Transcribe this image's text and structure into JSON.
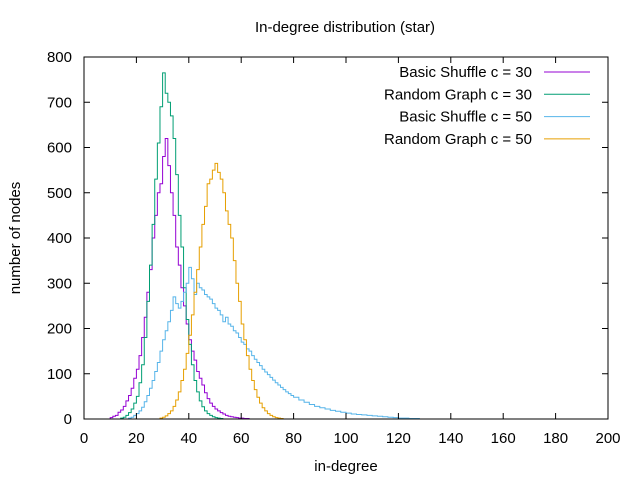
{
  "chart_data": {
    "type": "line",
    "step": true,
    "title": "In-degree distribution (star)",
    "xlabel": "in-degree",
    "ylabel": "number of nodes",
    "xlim": [
      0,
      200
    ],
    "ylim": [
      0,
      800
    ],
    "xticks": [
      0,
      20,
      40,
      60,
      80,
      100,
      120,
      140,
      160,
      180,
      200
    ],
    "yticks": [
      0,
      100,
      200,
      300,
      400,
      500,
      600,
      700,
      800
    ],
    "grid": false,
    "legend_position": "top-right",
    "series": [
      {
        "name": "Basic Shuffle c = 30",
        "color": "#9400d3",
        "points": [
          [
            9,
            0
          ],
          [
            10,
            3
          ],
          [
            11,
            6
          ],
          [
            12,
            8
          ],
          [
            13,
            15
          ],
          [
            14,
            20
          ],
          [
            15,
            28
          ],
          [
            16,
            40
          ],
          [
            17,
            52
          ],
          [
            18,
            68
          ],
          [
            19,
            90
          ],
          [
            20,
            110
          ],
          [
            21,
            140
          ],
          [
            22,
            180
          ],
          [
            23,
            225
          ],
          [
            24,
            280
          ],
          [
            25,
            330
          ],
          [
            26,
            400
          ],
          [
            27,
            450
          ],
          [
            28,
            500
          ],
          [
            29,
            520
          ],
          [
            30,
            580
          ],
          [
            31,
            620
          ],
          [
            32,
            560
          ],
          [
            33,
            500
          ],
          [
            34,
            450
          ],
          [
            35,
            380
          ],
          [
            36,
            340
          ],
          [
            37,
            290
          ],
          [
            38,
            250
          ],
          [
            39,
            210
          ],
          [
            40,
            175
          ],
          [
            41,
            150
          ],
          [
            42,
            130
          ],
          [
            43,
            105
          ],
          [
            44,
            90
          ],
          [
            45,
            75
          ],
          [
            46,
            58
          ],
          [
            47,
            45
          ],
          [
            48,
            35
          ],
          [
            49,
            28
          ],
          [
            50,
            22
          ],
          [
            51,
            18
          ],
          [
            52,
            14
          ],
          [
            53,
            11
          ],
          [
            54,
            8
          ],
          [
            55,
            6
          ],
          [
            56,
            5
          ],
          [
            57,
            4
          ],
          [
            58,
            3
          ],
          [
            59,
            2
          ],
          [
            60,
            2
          ],
          [
            61,
            1
          ],
          [
            62,
            1
          ],
          [
            63,
            0
          ]
        ]
      },
      {
        "name": "Random Graph c = 30",
        "color": "#009e73",
        "points": [
          [
            13,
            0
          ],
          [
            14,
            2
          ],
          [
            15,
            4
          ],
          [
            16,
            8
          ],
          [
            17,
            14
          ],
          [
            18,
            22
          ],
          [
            19,
            35
          ],
          [
            20,
            50
          ],
          [
            21,
            80
          ],
          [
            22,
            120
          ],
          [
            23,
            180
          ],
          [
            24,
            260
          ],
          [
            25,
            340
          ],
          [
            26,
            430
          ],
          [
            27,
            530
          ],
          [
            28,
            610
          ],
          [
            29,
            690
          ],
          [
            30,
            765
          ],
          [
            31,
            720
          ],
          [
            32,
            700
          ],
          [
            33,
            670
          ],
          [
            34,
            620
          ],
          [
            35,
            540
          ],
          [
            36,
            450
          ],
          [
            37,
            380
          ],
          [
            38,
            290
          ],
          [
            39,
            220
          ],
          [
            40,
            165
          ],
          [
            41,
            120
          ],
          [
            42,
            85
          ],
          [
            43,
            60
          ],
          [
            44,
            40
          ],
          [
            45,
            27
          ],
          [
            46,
            18
          ],
          [
            47,
            12
          ],
          [
            48,
            8
          ],
          [
            49,
            5
          ],
          [
            50,
            3
          ],
          [
            51,
            2
          ],
          [
            52,
            1
          ],
          [
            53,
            0
          ]
        ]
      },
      {
        "name": "Basic Shuffle c = 50",
        "color": "#56b4e9",
        "points": [
          [
            16,
            0
          ],
          [
            17,
            2
          ],
          [
            18,
            4
          ],
          [
            19,
            8
          ],
          [
            20,
            12
          ],
          [
            21,
            18
          ],
          [
            22,
            26
          ],
          [
            23,
            38
          ],
          [
            24,
            52
          ],
          [
            25,
            68
          ],
          [
            26,
            85
          ],
          [
            27,
            105
          ],
          [
            28,
            125
          ],
          [
            29,
            150
          ],
          [
            30,
            175
          ],
          [
            31,
            195
          ],
          [
            32,
            215
          ],
          [
            33,
            240
          ],
          [
            34,
            270
          ],
          [
            35,
            255
          ],
          [
            36,
            245
          ],
          [
            37,
            260
          ],
          [
            38,
            280
          ],
          [
            39,
            300
          ],
          [
            40,
            335
          ],
          [
            41,
            310
          ],
          [
            42,
            275
          ],
          [
            43,
            300
          ],
          [
            44,
            290
          ],
          [
            45,
            285
          ],
          [
            46,
            275
          ],
          [
            47,
            270
          ],
          [
            48,
            265
          ],
          [
            49,
            255
          ],
          [
            50,
            245
          ],
          [
            51,
            240
          ],
          [
            52,
            230
          ],
          [
            53,
            215
          ],
          [
            54,
            225
          ],
          [
            55,
            210
          ],
          [
            56,
            205
          ],
          [
            57,
            195
          ],
          [
            58,
            190
          ],
          [
            59,
            180
          ],
          [
            60,
            170
          ],
          [
            61,
            165
          ],
          [
            62,
            155
          ],
          [
            63,
            150
          ],
          [
            64,
            140
          ],
          [
            65,
            132
          ],
          [
            66,
            125
          ],
          [
            67,
            118
          ],
          [
            68,
            110
          ],
          [
            69,
            104
          ],
          [
            70,
            98
          ],
          [
            71,
            92
          ],
          [
            72,
            86
          ],
          [
            73,
            80
          ],
          [
            74,
            75
          ],
          [
            75,
            70
          ],
          [
            76,
            65
          ],
          [
            77,
            60
          ],
          [
            78,
            56
          ],
          [
            79,
            52
          ],
          [
            80,
            48
          ],
          [
            82,
            42
          ],
          [
            84,
            37
          ],
          [
            86,
            32
          ],
          [
            88,
            28
          ],
          [
            90,
            25
          ],
          [
            92,
            22
          ],
          [
            94,
            19
          ],
          [
            96,
            17
          ],
          [
            98,
            15
          ],
          [
            100,
            13
          ],
          [
            102,
            11
          ],
          [
            104,
            10
          ],
          [
            106,
            9
          ],
          [
            108,
            8
          ],
          [
            110,
            7
          ],
          [
            112,
            6
          ],
          [
            114,
            5
          ],
          [
            116,
            4
          ],
          [
            118,
            3
          ],
          [
            120,
            2
          ],
          [
            122,
            2
          ],
          [
            124,
            1
          ],
          [
            126,
            1
          ],
          [
            128,
            0
          ]
        ]
      },
      {
        "name": "Random Graph c = 50",
        "color": "#e69f00",
        "points": [
          [
            28,
            0
          ],
          [
            29,
            2
          ],
          [
            30,
            4
          ],
          [
            31,
            7
          ],
          [
            32,
            12
          ],
          [
            33,
            18
          ],
          [
            34,
            28
          ],
          [
            35,
            42
          ],
          [
            36,
            60
          ],
          [
            37,
            85
          ],
          [
            38,
            110
          ],
          [
            39,
            145
          ],
          [
            40,
            185
          ],
          [
            41,
            230
          ],
          [
            42,
            280
          ],
          [
            43,
            330
          ],
          [
            44,
            380
          ],
          [
            45,
            430
          ],
          [
            46,
            470
          ],
          [
            47,
            520
          ],
          [
            48,
            530
          ],
          [
            49,
            550
          ],
          [
            50,
            565
          ],
          [
            51,
            545
          ],
          [
            52,
            530
          ],
          [
            53,
            500
          ],
          [
            54,
            460
          ],
          [
            55,
            430
          ],
          [
            56,
            400
          ],
          [
            57,
            350
          ],
          [
            58,
            300
          ],
          [
            59,
            260
          ],
          [
            60,
            210
          ],
          [
            61,
            175
          ],
          [
            62,
            140
          ],
          [
            63,
            110
          ],
          [
            64,
            85
          ],
          [
            65,
            65
          ],
          [
            66,
            48
          ],
          [
            67,
            35
          ],
          [
            68,
            25
          ],
          [
            69,
            18
          ],
          [
            70,
            12
          ],
          [
            71,
            8
          ],
          [
            72,
            5
          ],
          [
            73,
            3
          ],
          [
            74,
            2
          ],
          [
            75,
            1
          ],
          [
            76,
            0
          ]
        ]
      }
    ]
  }
}
